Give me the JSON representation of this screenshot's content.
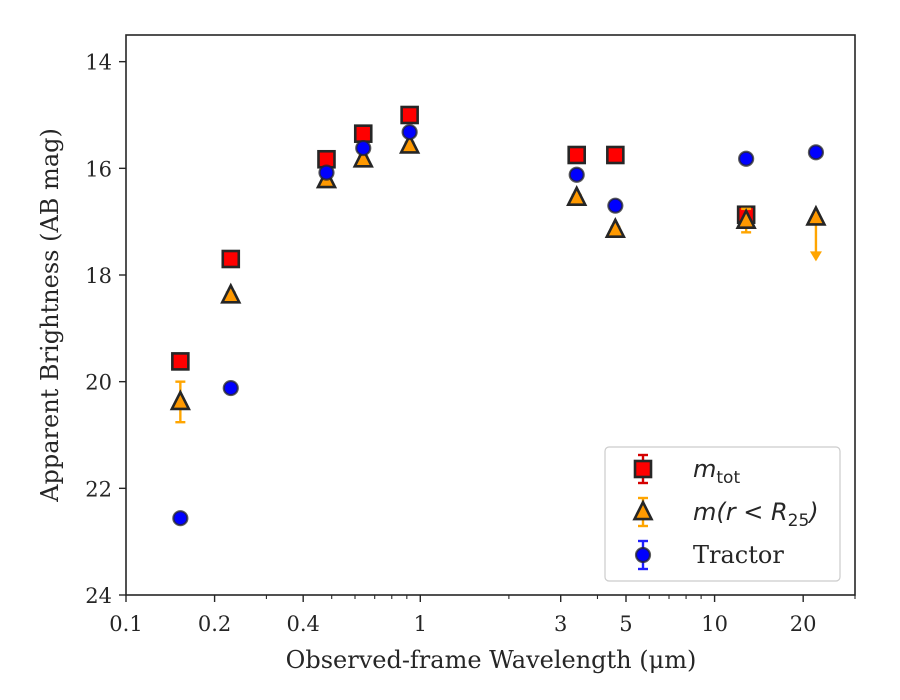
{
  "chart_data": {
    "type": "scatter",
    "xlabel": "Observed-frame Wavelength (μm)",
    "ylabel": "Apparent Brightness (AB mag)",
    "x_scale": "log",
    "y_inverted": true,
    "xlim": [
      0.1,
      30
    ],
    "ylim": [
      24,
      13.5
    ],
    "x_ticks": [
      0.1,
      0.2,
      0.4,
      1,
      3,
      5,
      10,
      20
    ],
    "x_tick_labels": [
      "0.1",
      "0.2",
      "0.4",
      "1",
      "3",
      "5",
      "10",
      "20"
    ],
    "y_ticks": [
      14,
      16,
      18,
      20,
      22,
      24
    ],
    "y_tick_labels": [
      "14",
      "16",
      "18",
      "20",
      "22",
      "24"
    ],
    "grid": false,
    "legend_position": "bottom-right",
    "series": [
      {
        "name": "m_tot",
        "marker": "square",
        "face_color": "#ff0000",
        "edge_color": "#262626",
        "error_color": "#d40000",
        "points": [
          {
            "x": 0.153,
            "y": 19.62,
            "err": 0.05
          },
          {
            "x": 0.227,
            "y": 17.7,
            "err": 0.05
          },
          {
            "x": 0.48,
            "y": 15.83,
            "err": 0.05
          },
          {
            "x": 0.64,
            "y": 15.35,
            "err": 0.05
          },
          {
            "x": 0.92,
            "y": 15.0,
            "err": 0.05
          },
          {
            "x": 3.4,
            "y": 15.75,
            "err": 0.05
          },
          {
            "x": 4.6,
            "y": 15.75,
            "err": 0.05
          },
          {
            "x": 12.8,
            "y": 16.87,
            "err": 0.05
          }
        ]
      },
      {
        "name": "m(r < R25)",
        "marker": "triangle",
        "face_color": "#ff9900",
        "edge_color": "#262626",
        "error_color": "#ffa500",
        "points": [
          {
            "x": 0.153,
            "y": 20.38,
            "err": 0.38
          },
          {
            "x": 0.227,
            "y": 18.38,
            "err": 0.05
          },
          {
            "x": 0.48,
            "y": 16.22,
            "err": 0.05
          },
          {
            "x": 0.64,
            "y": 15.83,
            "err": 0.05
          },
          {
            "x": 0.92,
            "y": 15.57,
            "err": 0.05
          },
          {
            "x": 3.4,
            "y": 16.55,
            "err": 0.05
          },
          {
            "x": 4.6,
            "y": 17.15,
            "err": 0.05
          },
          {
            "x": 12.8,
            "y": 16.98,
            "err": 0.22
          },
          {
            "x": 22.1,
            "y": 16.92,
            "upper_limit": true
          }
        ]
      },
      {
        "name": "Tractor",
        "marker": "circle",
        "face_color": "#0000ff",
        "edge_color": "#262626",
        "error_color": "#1f1fff",
        "points": [
          {
            "x": 0.153,
            "y": 22.56,
            "err": 0.05
          },
          {
            "x": 0.227,
            "y": 20.12,
            "err": 0.05
          },
          {
            "x": 0.48,
            "y": 16.08,
            "err": 0.05
          },
          {
            "x": 0.64,
            "y": 15.62,
            "err": 0.05
          },
          {
            "x": 0.92,
            "y": 15.32,
            "err": 0.05
          },
          {
            "x": 3.4,
            "y": 16.12,
            "err": 0.05
          },
          {
            "x": 4.6,
            "y": 16.7,
            "err": 0.05
          },
          {
            "x": 12.8,
            "y": 15.82,
            "err": 0.05
          },
          {
            "x": 22.1,
            "y": 15.7,
            "err": 0.05
          }
        ]
      }
    ],
    "legend": {
      "entries": [
        {
          "series": 0,
          "base": "m",
          "sub": "tot",
          "suffix": ""
        },
        {
          "series": 1,
          "base": "m(r < R",
          "sub": "25",
          "suffix": ")"
        },
        {
          "series": 2,
          "base": "Tractor",
          "sub": "",
          "suffix": ""
        }
      ]
    }
  }
}
